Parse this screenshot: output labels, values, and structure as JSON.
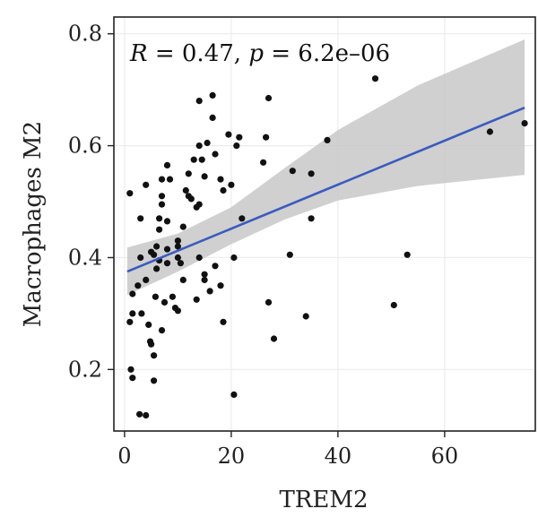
{
  "chart_data": {
    "type": "scatter",
    "xlabel": "TREM2",
    "ylabel": "Macrophages M2",
    "annotation": {
      "r_label": "R",
      "r_value": " = 0.47, ",
      "p_label": "p",
      "p_value": " = 6.2e–06"
    },
    "xlim": [
      -2,
      77
    ],
    "ylim": [
      0.09,
      0.83
    ],
    "x_ticks": [
      0,
      20,
      40,
      60
    ],
    "y_ticks": [
      0.2,
      0.4,
      0.6,
      0.8
    ],
    "x_tick_labels": [
      "0",
      "20",
      "40",
      "60"
    ],
    "y_tick_labels": [
      "0.2",
      "0.4",
      "0.6",
      "0.8"
    ],
    "grid": true,
    "colors": {
      "point": "#111111",
      "line": "#3a5bbf",
      "band": "#c8c8c8",
      "grid": "#ececec",
      "frame": "#222222"
    },
    "regression": {
      "line": [
        [
          0.5,
          0.375
        ],
        [
          75,
          0.668
        ]
      ],
      "band_upper": [
        [
          0.5,
          0.418
        ],
        [
          10,
          0.443
        ],
        [
          20,
          0.49
        ],
        [
          30,
          0.56
        ],
        [
          40,
          0.628
        ],
        [
          55,
          0.708
        ],
        [
          75,
          0.79
        ]
      ],
      "band_lower": [
        [
          0.5,
          0.333
        ],
        [
          10,
          0.375
        ],
        [
          20,
          0.424
        ],
        [
          30,
          0.468
        ],
        [
          40,
          0.502
        ],
        [
          55,
          0.528
        ],
        [
          75,
          0.548
        ]
      ]
    },
    "points": [
      [
        1,
        0.515
      ],
      [
        1.5,
        0.335
      ],
      [
        1,
        0.285
      ],
      [
        1.5,
        0.3
      ],
      [
        1.2,
        0.2
      ],
      [
        1.5,
        0.185
      ],
      [
        2.5,
        0.35
      ],
      [
        3,
        0.4
      ],
      [
        3,
        0.47
      ],
      [
        3.2,
        0.3
      ],
      [
        2.8,
        0.12
      ],
      [
        4,
        0.118
      ],
      [
        4,
        0.53
      ],
      [
        4,
        0.36
      ],
      [
        4.5,
        0.28
      ],
      [
        4.8,
        0.25
      ],
      [
        5,
        0.245
      ],
      [
        5,
        0.41
      ],
      [
        5.5,
        0.405
      ],
      [
        5.5,
        0.18
      ],
      [
        5.5,
        0.225
      ],
      [
        5.8,
        0.33
      ],
      [
        6,
        0.38
      ],
      [
        6,
        0.42
      ],
      [
        6.5,
        0.45
      ],
      [
        6.5,
        0.395
      ],
      [
        6.5,
        0.47
      ],
      [
        7,
        0.51
      ],
      [
        7,
        0.54
      ],
      [
        7,
        0.495
      ],
      [
        7,
        0.27
      ],
      [
        7.5,
        0.32
      ],
      [
        8,
        0.565
      ],
      [
        8,
        0.465
      ],
      [
        8,
        0.39
      ],
      [
        8,
        0.415
      ],
      [
        8.5,
        0.54
      ],
      [
        9,
        0.33
      ],
      [
        9.5,
        0.31
      ],
      [
        10,
        0.42
      ],
      [
        10,
        0.4
      ],
      [
        10,
        0.43
      ],
      [
        10,
        0.305
      ],
      [
        10.5,
        0.39
      ],
      [
        11,
        0.36
      ],
      [
        11,
        0.455
      ],
      [
        11.5,
        0.52
      ],
      [
        12,
        0.51
      ],
      [
        12,
        0.55
      ],
      [
        12.5,
        0.505
      ],
      [
        13,
        0.575
      ],
      [
        13.5,
        0.49
      ],
      [
        13.5,
        0.325
      ],
      [
        14,
        0.495
      ],
      [
        14,
        0.68
      ],
      [
        14,
        0.6
      ],
      [
        14,
        0.4
      ],
      [
        14.5,
        0.575
      ],
      [
        15,
        0.545
      ],
      [
        15,
        0.36
      ],
      [
        15,
        0.37
      ],
      [
        15.5,
        0.605
      ],
      [
        16,
        0.34
      ],
      [
        16.5,
        0.69
      ],
      [
        16.5,
        0.65
      ],
      [
        17,
        0.585
      ],
      [
        17,
        0.385
      ],
      [
        18,
        0.35
      ],
      [
        18,
        0.54
      ],
      [
        18.5,
        0.52
      ],
      [
        18.5,
        0.285
      ],
      [
        19.5,
        0.62
      ],
      [
        20,
        0.53
      ],
      [
        20.5,
        0.4
      ],
      [
        20.5,
        0.155
      ],
      [
        21,
        0.6
      ],
      [
        21.5,
        0.615
      ],
      [
        22,
        0.47
      ],
      [
        26,
        0.57
      ],
      [
        26.5,
        0.615
      ],
      [
        27,
        0.685
      ],
      [
        27,
        0.32
      ],
      [
        28,
        0.255
      ],
      [
        31,
        0.405
      ],
      [
        31.5,
        0.555
      ],
      [
        34,
        0.295
      ],
      [
        35,
        0.55
      ],
      [
        35,
        0.47
      ],
      [
        38,
        0.61
      ],
      [
        47,
        0.72
      ],
      [
        50.5,
        0.315
      ],
      [
        53,
        0.405
      ],
      [
        68.5,
        0.625
      ],
      [
        75,
        0.64
      ]
    ]
  }
}
